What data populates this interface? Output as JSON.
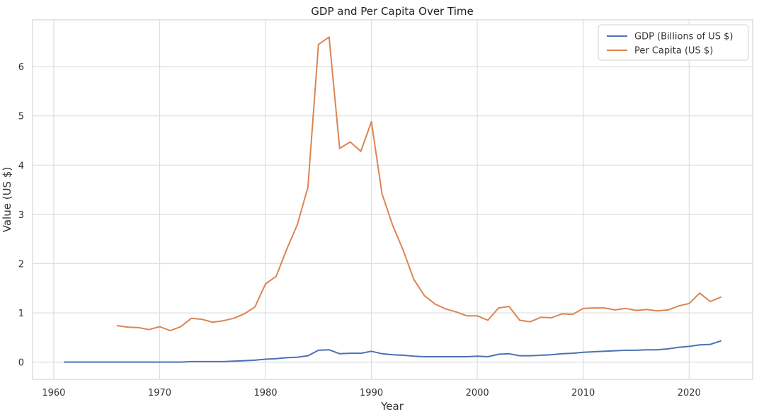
{
  "chart_data": {
    "type": "line",
    "title": "GDP and Per Capita Over Time",
    "xlabel": "Year",
    "ylabel": "Value (US $)",
    "xlim": [
      1958,
      2026
    ],
    "ylim": [
      -0.35,
      6.95
    ],
    "xticks": [
      "1960",
      "1970",
      "1980",
      "1990",
      "2000",
      "2010",
      "2020"
    ],
    "yticks": [
      "0",
      "1",
      "2",
      "3",
      "4",
      "5",
      "6"
    ],
    "grid": true,
    "legend_position": "top-right",
    "series": [
      {
        "name": "GDP (Billions of US $)",
        "color": "#4C72B0",
        "x": [
          1961,
          1962,
          1963,
          1964,
          1965,
          1966,
          1967,
          1968,
          1969,
          1970,
          1971,
          1972,
          1973,
          1974,
          1975,
          1976,
          1977,
          1978,
          1979,
          1980,
          1981,
          1982,
          1983,
          1984,
          1985,
          1986,
          1987,
          1988,
          1989,
          1990,
          1991,
          1992,
          1993,
          1994,
          1995,
          1996,
          1997,
          1998,
          1999,
          2000,
          2001,
          2002,
          2003,
          2004,
          2005,
          2006,
          2007,
          2008,
          2009,
          2010,
          2011,
          2012,
          2013,
          2014,
          2015,
          2016,
          2017,
          2018,
          2019,
          2020,
          2021,
          2022,
          2023
        ],
        "y": [
          0.0,
          0.0,
          0.0,
          0.0,
          0.0,
          0.0,
          0.0,
          0.0,
          0.0,
          0.0,
          0.0,
          0.0,
          0.01,
          0.01,
          0.01,
          0.01,
          0.02,
          0.03,
          0.04,
          0.06,
          0.07,
          0.09,
          0.1,
          0.13,
          0.24,
          0.25,
          0.17,
          0.18,
          0.18,
          0.22,
          0.17,
          0.15,
          0.14,
          0.12,
          0.11,
          0.11,
          0.11,
          0.11,
          0.11,
          0.12,
          0.11,
          0.16,
          0.17,
          0.13,
          0.13,
          0.14,
          0.15,
          0.17,
          0.18,
          0.2,
          0.21,
          0.22,
          0.23,
          0.24,
          0.24,
          0.25,
          0.25,
          0.27,
          0.3,
          0.32,
          0.35,
          0.36,
          0.43
        ]
      },
      {
        "name": "Per Capita (US $)",
        "color": "#DD8452",
        "x": [
          1966,
          1967,
          1968,
          1969,
          1970,
          1971,
          1972,
          1973,
          1974,
          1975,
          1976,
          1977,
          1978,
          1979,
          1980,
          1981,
          1982,
          1983,
          1984,
          1985,
          1986,
          1987,
          1988,
          1989,
          1990,
          1991,
          1992,
          1993,
          1994,
          1995,
          1996,
          1997,
          1998,
          1999,
          2000,
          2001,
          2002,
          2003,
          2004,
          2005,
          2006,
          2007,
          2008,
          2009,
          2010,
          2011,
          2012,
          2013,
          2014,
          2015,
          2016,
          2017,
          2018,
          2019,
          2020,
          2021,
          2022,
          2023
        ],
        "y": [
          0.74,
          0.71,
          0.7,
          0.66,
          0.72,
          0.64,
          0.72,
          0.89,
          0.87,
          0.81,
          0.84,
          0.89,
          0.98,
          1.12,
          1.59,
          1.74,
          2.29,
          2.79,
          3.55,
          6.45,
          6.6,
          4.34,
          4.47,
          4.28,
          4.88,
          3.42,
          2.78,
          2.27,
          1.68,
          1.35,
          1.18,
          1.08,
          1.02,
          0.94,
          0.94,
          0.85,
          1.1,
          1.13,
          0.85,
          0.82,
          0.91,
          0.9,
          0.98,
          0.97,
          1.09,
          1.1,
          1.1,
          1.06,
          1.09,
          1.05,
          1.07,
          1.04,
          1.06,
          1.14,
          1.19,
          1.4,
          1.23,
          1.32
        ]
      }
    ]
  }
}
